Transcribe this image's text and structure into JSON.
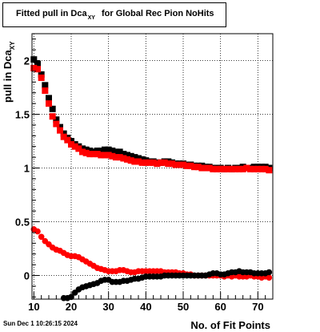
{
  "title": {
    "main": "Fitted pull in Dca",
    "sub": "XY",
    "rest": "for Global Rec Pion NoHits"
  },
  "footer_timestamp": "Sun Dec  1 10:26:15 2024",
  "chart_data": {
    "type": "scatter",
    "xlabel": "No. of Fit Points",
    "ylabel": {
      "main": "pull in Dca",
      "sub": "XY"
    },
    "xlim": [
      9.5,
      74
    ],
    "ylim": [
      -0.22,
      2.25
    ],
    "xticks": [
      10,
      20,
      30,
      40,
      50,
      60,
      70
    ],
    "xtick_labels": [
      "10",
      "20",
      "30",
      "40",
      "50",
      "60",
      "70"
    ],
    "yticks": [
      0,
      0.5,
      1,
      1.5,
      2
    ],
    "ytick_labels": [
      "0",
      "0.5",
      "1",
      "1.5",
      "2"
    ],
    "grid": true,
    "series": [
      {
        "color": "#000000",
        "marker": "square",
        "role": "width",
        "x": [
          10,
          11,
          12,
          13,
          14,
          15,
          16,
          17,
          18,
          19,
          20,
          21,
          22,
          23,
          24,
          25,
          26,
          27,
          28,
          29,
          30,
          31,
          32,
          33,
          34,
          35,
          36,
          37,
          38,
          39,
          40,
          41,
          42,
          43,
          44,
          45,
          46,
          47,
          48,
          49,
          50,
          51,
          52,
          53,
          54,
          55,
          56,
          57,
          58,
          59,
          60,
          61,
          62,
          63,
          64,
          65,
          66,
          67,
          68,
          69,
          70,
          71,
          72,
          73
        ],
        "y": [
          2.01,
          1.97,
          1.87,
          1.77,
          1.65,
          1.55,
          1.45,
          1.38,
          1.32,
          1.28,
          1.25,
          1.22,
          1.2,
          1.18,
          1.17,
          1.16,
          1.15,
          1.16,
          1.16,
          1.17,
          1.17,
          1.16,
          1.15,
          1.15,
          1.13,
          1.12,
          1.11,
          1.1,
          1.09,
          1.08,
          1.07,
          1.06,
          1.06,
          1.05,
          1.05,
          1.06,
          1.06,
          1.05,
          1.04,
          1.04,
          1.04,
          1.03,
          1.03,
          1.02,
          1.02,
          1.02,
          1.01,
          1.01,
          1.0,
          1.0,
          1.0,
          0.99,
          1.0,
          0.99,
          1.0,
          1.0,
          1.01,
          1.0,
          1.0,
          1.01,
          1.01,
          1.01,
          1.01,
          1.0
        ]
      },
      {
        "color": "#ff0000",
        "marker": "square",
        "role": "width",
        "x": [
          10,
          11,
          12,
          13,
          14,
          15,
          16,
          17,
          18,
          19,
          20,
          21,
          22,
          23,
          24,
          25,
          26,
          27,
          28,
          29,
          30,
          31,
          32,
          33,
          34,
          35,
          36,
          37,
          38,
          39,
          40,
          41,
          42,
          43,
          44,
          45,
          46,
          47,
          48,
          49,
          50,
          51,
          52,
          53,
          54,
          55,
          56,
          57,
          58,
          59,
          60,
          61,
          62,
          63,
          64,
          65,
          66,
          67,
          68,
          69,
          70,
          71,
          72,
          73
        ],
        "y": [
          1.93,
          1.92,
          1.84,
          1.72,
          1.6,
          1.48,
          1.41,
          1.35,
          1.29,
          1.26,
          1.22,
          1.2,
          1.18,
          1.15,
          1.14,
          1.13,
          1.13,
          1.13,
          1.12,
          1.12,
          1.12,
          1.11,
          1.1,
          1.1,
          1.09,
          1.08,
          1.07,
          1.06,
          1.06,
          1.05,
          1.05,
          1.05,
          1.05,
          1.04,
          1.05,
          1.05,
          1.04,
          1.04,
          1.03,
          1.03,
          1.03,
          1.02,
          1.02,
          1.01,
          1.01,
          1.0,
          1.0,
          1.0,
          0.99,
          0.99,
          0.99,
          0.99,
          0.99,
          0.99,
          0.99,
          0.99,
          0.99,
          1.0,
          0.99,
          0.99,
          0.99,
          0.99,
          0.99,
          0.98
        ]
      },
      {
        "color": "#ff0000",
        "marker": "circle",
        "role": "mean",
        "x": [
          10,
          11,
          12,
          13,
          14,
          15,
          16,
          17,
          18,
          19,
          20,
          21,
          22,
          23,
          24,
          25,
          26,
          27,
          28,
          29,
          30,
          31,
          32,
          33,
          34,
          35,
          36,
          37,
          38,
          39,
          40,
          41,
          42,
          43,
          44,
          45,
          46,
          47,
          48,
          49,
          50,
          51,
          52,
          53,
          54,
          55,
          56,
          57,
          58,
          59,
          60,
          61,
          62,
          63,
          64,
          65,
          66,
          67,
          68,
          69,
          70,
          71,
          72,
          73
        ],
        "y": [
          0.43,
          0.41,
          0.36,
          0.32,
          0.29,
          0.26,
          0.24,
          0.23,
          0.21,
          0.19,
          0.18,
          0.18,
          0.17,
          0.15,
          0.13,
          0.11,
          0.09,
          0.07,
          0.06,
          0.05,
          0.04,
          0.04,
          0.04,
          0.05,
          0.05,
          0.04,
          0.03,
          0.03,
          0.04,
          0.04,
          0.04,
          0.04,
          0.04,
          0.04,
          0.04,
          0.03,
          0.03,
          0.03,
          0.03,
          0.02,
          0.02,
          0.01,
          0.01,
          0.0,
          0.0,
          0.0,
          0.0,
          0.0,
          0.0,
          0.0,
          0.0,
          -0.01,
          0.0,
          -0.01,
          0.0,
          -0.01,
          -0.01,
          -0.01,
          0.0,
          -0.01,
          -0.01,
          -0.02,
          -0.01,
          -0.02
        ]
      },
      {
        "color": "#000000",
        "marker": "circle",
        "role": "mean",
        "x": [
          18,
          19,
          20,
          21,
          22,
          23,
          24,
          25,
          26,
          27,
          28,
          29,
          30,
          31,
          32,
          33,
          34,
          35,
          36,
          37,
          38,
          39,
          40,
          41,
          42,
          43,
          44,
          45,
          46,
          47,
          48,
          49,
          50,
          51,
          52,
          53,
          54,
          55,
          56,
          57,
          58,
          59,
          60,
          61,
          62,
          63,
          64,
          65,
          66,
          67,
          68,
          69,
          70,
          71,
          72,
          73
        ],
        "y": [
          -0.21,
          -0.21,
          -0.2,
          -0.16,
          -0.13,
          -0.11,
          -0.1,
          -0.09,
          -0.08,
          -0.07,
          -0.05,
          -0.04,
          -0.04,
          -0.06,
          -0.06,
          -0.06,
          -0.05,
          -0.05,
          -0.04,
          -0.03,
          -0.03,
          -0.02,
          -0.01,
          -0.01,
          -0.01,
          -0.01,
          -0.01,
          0.0,
          0.0,
          0.0,
          0.0,
          0.0,
          0.0,
          0.0,
          0.0,
          0.0,
          0.0,
          0.0,
          0.0,
          0.01,
          0.02,
          0.02,
          0.01,
          0.01,
          0.02,
          0.03,
          0.03,
          0.04,
          0.03,
          0.03,
          0.03,
          0.02,
          0.02,
          0.02,
          0.02,
          0.03
        ]
      }
    ]
  }
}
